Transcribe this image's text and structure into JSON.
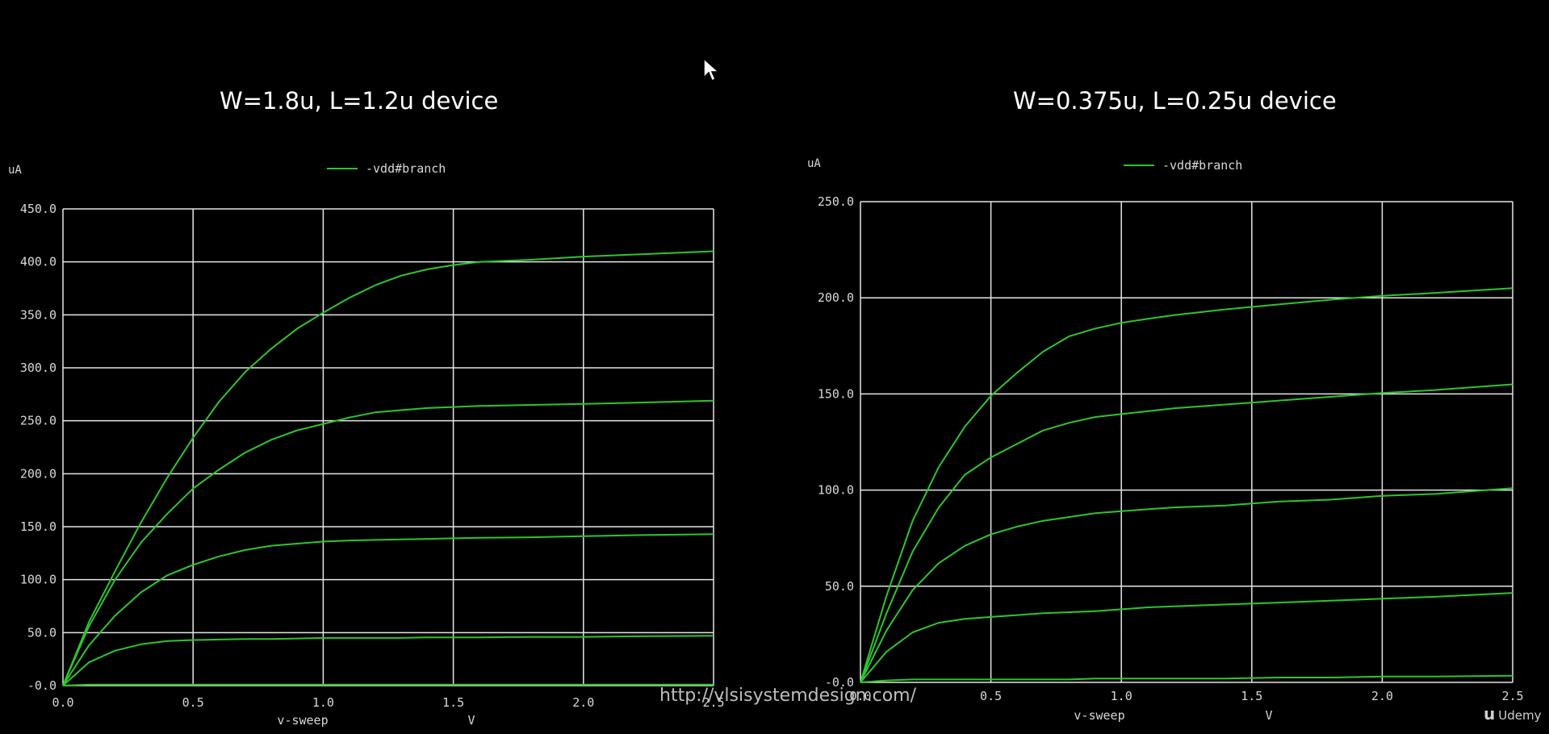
{
  "page": {
    "watermark": "http://vlsisystemdesign.com/",
    "brand": "Udemy",
    "brand_icon": "udemy-logo-icon"
  },
  "chart_data": [
    {
      "type": "line",
      "title": "W=1.8u, L=1.2u device",
      "ylabel": "uA",
      "xlabel": "v-sweep",
      "xunit": "V",
      "legend": "-vdd#branch",
      "legend_position": "top-center",
      "grid": true,
      "xlim": [
        0,
        2.5
      ],
      "ylim": [
        0,
        450
      ],
      "xticks": [
        0.0,
        0.5,
        1.0,
        1.5,
        2.0,
        2.5
      ],
      "xtick_labels": [
        "0.0",
        "0.5",
        "1.0",
        "1.5",
        "2.0",
        "2.5"
      ],
      "yticks": [
        0,
        50,
        100,
        150,
        200,
        250,
        300,
        350,
        400,
        450
      ],
      "ytick_labels": [
        "-0.0",
        "50.0",
        "100.0",
        "150.0",
        "200.0",
        "250.0",
        "300.0",
        "350.0",
        "400.0",
        "450.0"
      ],
      "line_color": "#2fc42f",
      "x": [
        0.0,
        0.1,
        0.2,
        0.3,
        0.4,
        0.5,
        0.6,
        0.7,
        0.8,
        0.9,
        1.0,
        1.1,
        1.2,
        1.3,
        1.4,
        1.5,
        1.6,
        1.8,
        2.0,
        2.2,
        2.5
      ],
      "series": [
        {
          "values": [
            0,
            1,
            1,
            1,
            1,
            1,
            1,
            1,
            1,
            1,
            1,
            1,
            1,
            1,
            1,
            1,
            1,
            1,
            1,
            1,
            1
          ]
        },
        {
          "values": [
            0,
            22,
            33,
            39,
            42,
            43,
            43.5,
            44,
            44,
            44.5,
            45,
            45,
            45,
            45,
            45.5,
            45.5,
            45.5,
            46,
            46,
            46.5,
            47
          ]
        },
        {
          "values": [
            0,
            38,
            66,
            88,
            104,
            114,
            122,
            128,
            132,
            134,
            136,
            137,
            137.5,
            138,
            138.5,
            139,
            139.5,
            140,
            141,
            142,
            143
          ]
        },
        {
          "values": [
            0,
            56,
            100,
            135,
            162,
            186,
            204,
            220,
            232,
            241,
            247,
            253,
            258,
            260,
            262,
            263,
            264,
            265,
            266,
            267,
            269
          ]
        },
        {
          "values": [
            0,
            60,
            108,
            154,
            196,
            234,
            268,
            296,
            318,
            337,
            352,
            366,
            378,
            387,
            393,
            397,
            400,
            402,
            405,
            407,
            410
          ]
        }
      ]
    },
    {
      "type": "line",
      "title": "W=0.375u, L=0.25u device",
      "ylabel": "uA",
      "xlabel": "v-sweep",
      "xunit": "V",
      "legend": "-vdd#branch",
      "legend_position": "top-center",
      "grid": true,
      "xlim": [
        0,
        2.5
      ],
      "ylim": [
        0,
        250
      ],
      "xticks": [
        0.0,
        0.5,
        1.0,
        1.5,
        2.0,
        2.5
      ],
      "xtick_labels": [
        "0.0",
        "0.5",
        "1.0",
        "1.5",
        "2.0",
        "2.5"
      ],
      "yticks": [
        0,
        50,
        100,
        150,
        200,
        250
      ],
      "ytick_labels": [
        "-0.0",
        "50.0",
        "100.0",
        "150.0",
        "200.0",
        "250.0"
      ],
      "line_color": "#2fc42f",
      "x": [
        0.0,
        0.1,
        0.2,
        0.3,
        0.4,
        0.5,
        0.6,
        0.7,
        0.8,
        0.9,
        1.0,
        1.1,
        1.2,
        1.4,
        1.6,
        1.8,
        2.0,
        2.2,
        2.5
      ],
      "series": [
        {
          "values": [
            0,
            1,
            1.5,
            1.5,
            1.5,
            1.5,
            1.5,
            1.5,
            1.5,
            2,
            2,
            2,
            2,
            2,
            2.5,
            2.5,
            3,
            3,
            3.5
          ]
        },
        {
          "values": [
            0,
            16,
            26,
            31,
            33,
            34,
            35,
            36,
            36.5,
            37,
            38,
            39,
            39.5,
            40.5,
            41.5,
            42.5,
            43.5,
            44.5,
            46.5
          ]
        },
        {
          "values": [
            0,
            27,
            48,
            62,
            71,
            77,
            81,
            84,
            86,
            88,
            89,
            90,
            91,
            92,
            94,
            95,
            97,
            98,
            101
          ]
        },
        {
          "values": [
            0,
            36,
            68,
            91,
            108,
            117,
            124,
            131,
            135,
            138,
            139.5,
            141,
            142.5,
            144.5,
            146.5,
            148.5,
            150.5,
            152,
            155
          ]
        },
        {
          "values": [
            0,
            45,
            84,
            112,
            133,
            149,
            161,
            172,
            180,
            184,
            187,
            189,
            191,
            194,
            196.5,
            199,
            201,
            202.5,
            205
          ]
        }
      ]
    }
  ]
}
